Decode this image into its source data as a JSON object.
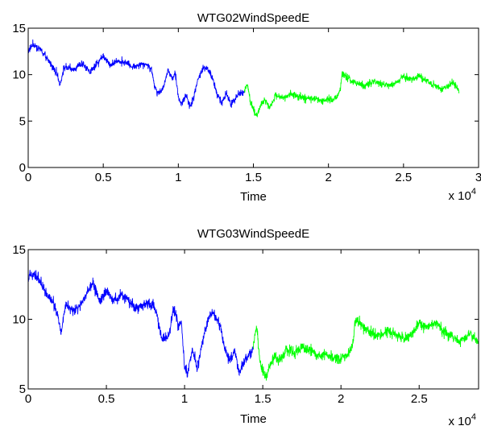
{
  "chart_data": [
    {
      "type": "line",
      "title": "WTG02WindSpeedE",
      "xlabel": "Time",
      "ylabel": "",
      "xlim": [
        0,
        30000
      ],
      "ylim": [
        0,
        15
      ],
      "x_ticks": [
        "0",
        "0.5",
        "1",
        "1.5",
        "2",
        "2.5",
        "3"
      ],
      "x_tick_values": [
        0,
        5000,
        10000,
        15000,
        20000,
        25000,
        30000
      ],
      "y_ticks": [
        "0",
        "5",
        "10",
        "15"
      ],
      "y_tick_values": [
        0,
        5,
        10,
        15
      ],
      "x_multiplier": {
        "base": "x 10",
        "exponent": "4"
      },
      "grid": false,
      "noise_amplitude": [
        0.15,
        0.6
      ],
      "series": [
        {
          "color": "#0000ff",
          "x": [
            0,
            300,
            800,
            1200,
            1600,
            1900,
            2100,
            2400,
            3000,
            3600,
            4100,
            4600,
            5000,
            5500,
            6000,
            6500,
            7000,
            7500,
            8000,
            8200,
            8400,
            8600,
            9000,
            9300,
            9600,
            9800,
            10000,
            10200,
            10500,
            10800,
            11000,
            11300,
            11700,
            12000,
            12300,
            12600,
            12900,
            13200,
            13500,
            13800,
            14100,
            14400
          ],
          "values": [
            12.5,
            13.2,
            12.8,
            11.8,
            11.0,
            10.2,
            8.8,
            10.8,
            10.5,
            11.2,
            10.3,
            11.2,
            12.0,
            11.0,
            11.5,
            11.3,
            10.8,
            11.2,
            11.0,
            10.5,
            9.0,
            8.0,
            8.5,
            10.5,
            9.5,
            10.2,
            7.5,
            6.8,
            7.8,
            6.5,
            7.5,
            9.5,
            10.8,
            10.5,
            9.5,
            7.8,
            7.0,
            8.0,
            6.8,
            7.5,
            8.0,
            8.2
          ]
        },
        {
          "color": "#00ff00",
          "x": [
            14400,
            14600,
            14800,
            15000,
            15200,
            15500,
            15800,
            16100,
            16500,
            17000,
            17500,
            18000,
            18500,
            19000,
            19500,
            20000,
            20300,
            20600,
            20800,
            20900,
            21200,
            21600,
            22000,
            22500,
            23000,
            23500,
            24000,
            24500,
            25000,
            25500,
            26000,
            26500,
            27000,
            27500,
            28000,
            28300,
            28700
          ],
          "values": [
            8.2,
            9.0,
            7.0,
            6.2,
            5.5,
            6.8,
            7.2,
            6.5,
            7.8,
            7.5,
            7.9,
            7.7,
            7.4,
            7.5,
            7.2,
            7.3,
            7.4,
            7.6,
            8.3,
            10.2,
            9.8,
            9.2,
            9.0,
            8.8,
            9.3,
            9.0,
            8.8,
            9.1,
            9.8,
            9.5,
            9.9,
            9.3,
            8.9,
            8.5,
            8.8,
            9.2,
            8.3
          ]
        }
      ]
    },
    {
      "type": "line",
      "title": "WTG03WindSpeedE",
      "xlabel": "Time",
      "ylabel": "",
      "xlim": [
        0,
        28800
      ],
      "ylim": [
        5,
        15
      ],
      "x_ticks": [
        "0",
        "0.5",
        "1",
        "1.5",
        "2",
        "2.5"
      ],
      "x_tick_values": [
        0,
        5000,
        10000,
        15000,
        20000,
        25000
      ],
      "y_ticks": [
        "5",
        "10",
        "15"
      ],
      "y_tick_values": [
        5,
        10,
        15
      ],
      "x_multiplier": {
        "base": "x 10",
        "exponent": "4"
      },
      "grid": false,
      "noise_amplitude": [
        0.15,
        0.6
      ],
      "series": [
        {
          "color": "#0000ff",
          "x": [
            0,
            300,
            800,
            1200,
            1600,
            1900,
            2100,
            2400,
            3000,
            3600,
            4100,
            4600,
            5000,
            5500,
            6000,
            6500,
            7000,
            7500,
            8000,
            8200,
            8400,
            8600,
            9000,
            9300,
            9600,
            9800,
            10000,
            10200,
            10500,
            10800,
            11000,
            11300,
            11700,
            12000,
            12300,
            12600,
            12900,
            13200,
            13500,
            13800,
            14100,
            14400
          ],
          "values": [
            13.0,
            13.3,
            12.7,
            11.8,
            11.2,
            10.3,
            9.0,
            11.0,
            10.6,
            11.5,
            12.6,
            11.2,
            12.0,
            11.3,
            11.8,
            11.2,
            10.8,
            11.1,
            11.0,
            10.6,
            9.2,
            8.5,
            8.8,
            10.8,
            9.6,
            9.8,
            6.5,
            6.2,
            7.8,
            6.6,
            7.5,
            9.2,
            10.5,
            10.2,
            9.3,
            7.8,
            7.0,
            7.8,
            6.2,
            7.0,
            7.4,
            8.0
          ]
        },
        {
          "color": "#00ff00",
          "x": [
            14400,
            14600,
            14800,
            15000,
            15200,
            15500,
            15800,
            16100,
            16500,
            17000,
            17500,
            18000,
            18500,
            19000,
            19500,
            20000,
            20300,
            20600,
            20800,
            20900,
            21200,
            21600,
            22000,
            22500,
            23000,
            23500,
            24000,
            24500,
            25000,
            25500,
            26000,
            26500,
            27000,
            27500,
            28000,
            28300,
            28800
          ],
          "values": [
            8.0,
            9.6,
            7.2,
            6.2,
            5.8,
            6.8,
            7.4,
            7.0,
            7.8,
            7.6,
            8.0,
            7.8,
            7.4,
            7.5,
            7.2,
            7.3,
            7.4,
            7.6,
            8.6,
            10.0,
            9.7,
            9.3,
            9.0,
            8.8,
            9.2,
            8.9,
            8.6,
            9.0,
            9.7,
            9.4,
            9.8,
            9.2,
            8.8,
            8.4,
            8.7,
            9.0,
            8.3
          ]
        }
      ]
    }
  ]
}
